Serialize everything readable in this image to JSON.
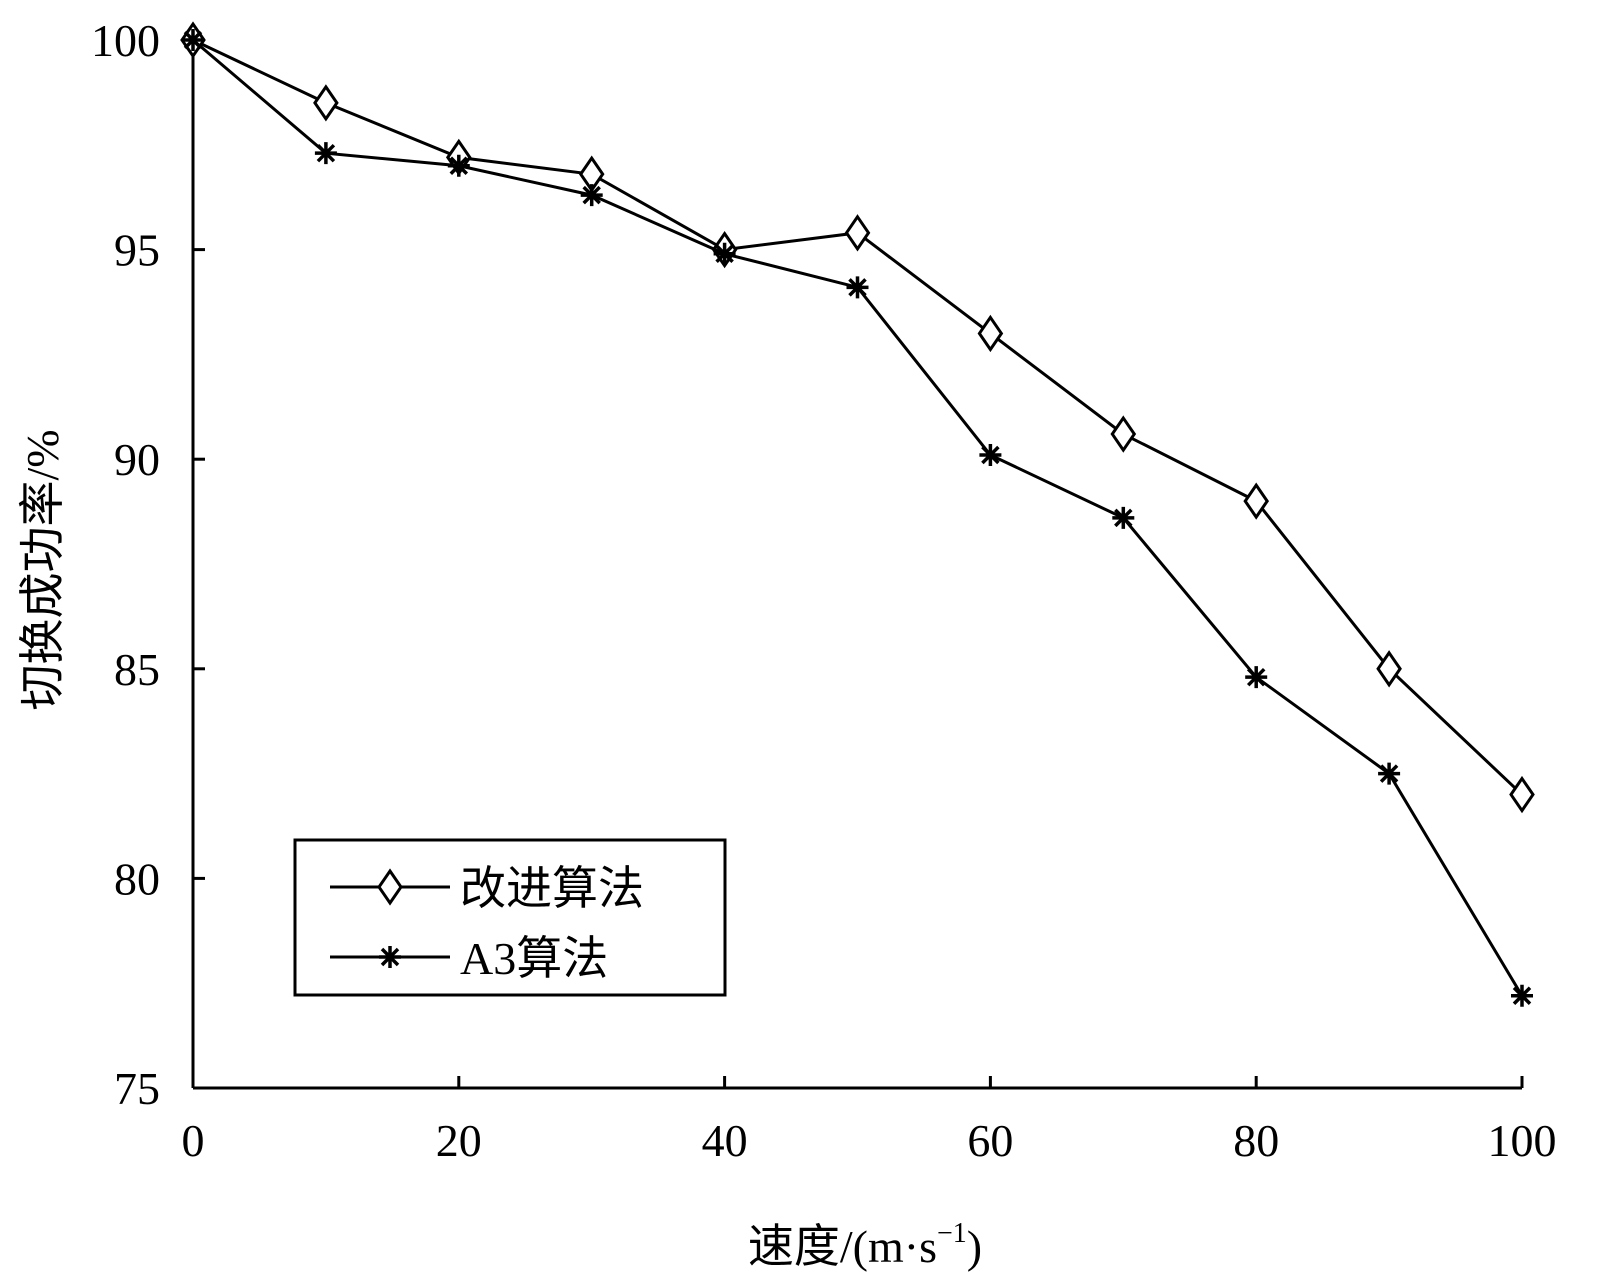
{
  "chart_data": {
    "type": "line",
    "title": "",
    "xlabel": "速度/(m·s",
    "xlabel_sup": "−1",
    "xlabel_close": ")",
    "ylabel": "切换成功率/%",
    "xlim": [
      0,
      100
    ],
    "ylim": [
      75,
      100
    ],
    "xticks": [
      0,
      20,
      40,
      60,
      80,
      100
    ],
    "yticks": [
      75,
      80,
      85,
      90,
      95,
      100
    ],
    "grid": false,
    "legend_position": "bottom-left",
    "x": [
      0,
      10,
      20,
      30,
      40,
      50,
      60,
      70,
      80,
      90,
      100
    ],
    "series": [
      {
        "name": "改进算法",
        "marker": "diamond",
        "color": "#000000",
        "values": [
          100,
          98.5,
          97.2,
          96.8,
          95.0,
          95.4,
          93.0,
          90.6,
          89.0,
          85.0,
          82.0
        ]
      },
      {
        "name": "A3算法",
        "marker": "asterisk",
        "color": "#000000",
        "values": [
          100,
          97.3,
          97.0,
          96.3,
          94.9,
          94.1,
          90.1,
          88.6,
          84.8,
          82.5,
          77.2
        ]
      }
    ]
  }
}
